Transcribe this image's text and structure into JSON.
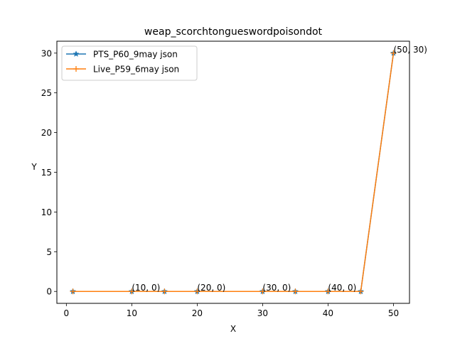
{
  "chart_data": {
    "type": "line",
    "title": "weap_scorchtongueswordpoisondot",
    "xlabel": "X",
    "ylabel": "Y",
    "xlim": [
      -1.45,
      52.45
    ],
    "ylim": [
      -1.5,
      31.5
    ],
    "xticks": [
      0,
      10,
      20,
      30,
      40,
      50
    ],
    "yticks": [
      0,
      5,
      10,
      15,
      20,
      25,
      30
    ],
    "grid": false,
    "legend_position": "top-left",
    "series": [
      {
        "name": "PTS_P60_9may json",
        "color": "#1f77b4",
        "marker": "star",
        "x": [
          1,
          10,
          15,
          20,
          30,
          35,
          40,
          45,
          50
        ],
        "y": [
          0,
          0,
          0,
          0,
          0,
          0,
          0,
          0,
          30
        ]
      },
      {
        "name": "Live_P59_6may json",
        "color": "#ff7f0e",
        "marker": "plus",
        "x": [
          1,
          10,
          15,
          20,
          30,
          35,
          40,
          45,
          50
        ],
        "y": [
          0,
          0,
          0,
          0,
          0,
          0,
          0,
          0,
          30
        ]
      }
    ],
    "annotations": [
      {
        "text": "(10, 0)",
        "x": 10,
        "y": 0
      },
      {
        "text": "(20, 0)",
        "x": 20,
        "y": 0
      },
      {
        "text": "(30, 0)",
        "x": 30,
        "y": 0
      },
      {
        "text": "(40, 0)",
        "x": 40,
        "y": 0
      },
      {
        "text": "(50, 30)",
        "x": 50,
        "y": 30
      }
    ]
  }
}
